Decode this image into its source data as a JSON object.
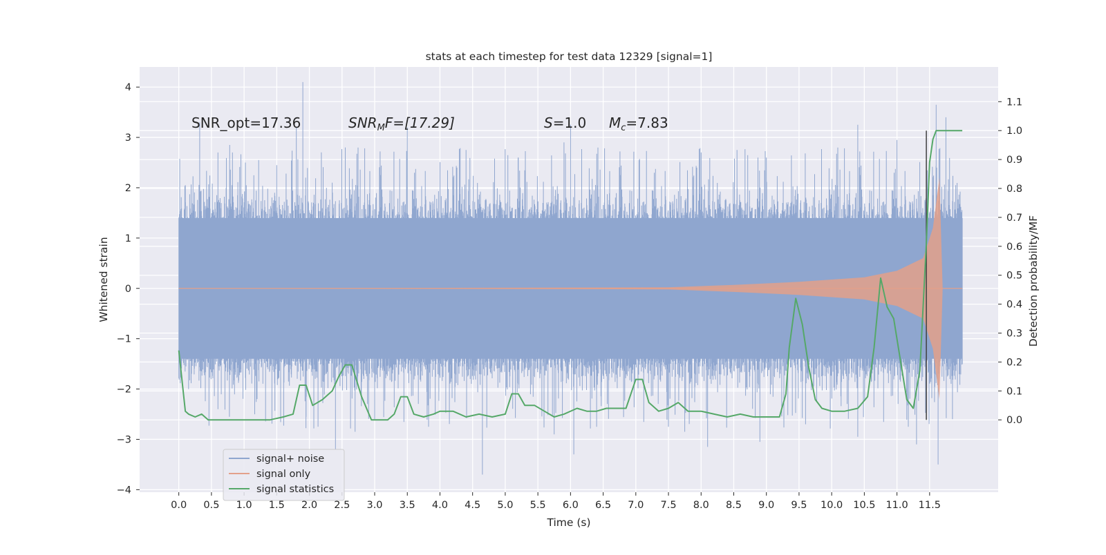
{
  "chart_data": {
    "type": "line",
    "title": "stats at each timestep for test data 12329 [signal=1]",
    "xlabel": "Time (s)",
    "ylabel": "Whitened strain",
    "y2label": "Detection probability/MF",
    "xlim": [
      -0.6,
      12.55
    ],
    "ylim": [
      -4.05,
      4.4
    ],
    "y2lim": [
      -0.25,
      1.22
    ],
    "x_ticks": [
      0.0,
      0.5,
      1.0,
      1.5,
      2.0,
      2.5,
      3.0,
      3.5,
      4.0,
      4.5,
      5.0,
      5.5,
      6.0,
      6.5,
      7.0,
      7.5,
      8.0,
      8.5,
      9.0,
      9.5,
      10.0,
      10.5,
      11.0,
      11.5
    ],
    "x_tick_labels": [
      "0.0",
      "0.5",
      "1.0",
      "1.5",
      "2.0",
      "2.5",
      "3.0",
      "3.5",
      "4.0",
      "4.5",
      "5.0",
      "5.5",
      "6.0",
      "6.5",
      "7.0",
      "7.5",
      "8.0",
      "8.5",
      "9.0",
      "9.5",
      "10.0",
      "10.5",
      "11.0",
      "11.5"
    ],
    "y_ticks": [
      4,
      3,
      2,
      1,
      0,
      -1,
      -2,
      -3,
      -4
    ],
    "y_tick_labels": [
      "4",
      "3",
      "2",
      "1",
      "0",
      "−1",
      "−2",
      "−3",
      "−4"
    ],
    "y2_ticks": [
      1.1,
      1.0,
      0.9,
      0.8,
      0.7,
      0.6,
      0.5,
      0.4,
      0.3,
      0.2,
      0.1,
      0.0
    ],
    "y2_tick_labels": [
      "1.1",
      "1.0",
      "0.9",
      "0.8",
      "0.7",
      "0.6",
      "0.5",
      "0.4",
      "0.3",
      "0.2",
      "0.1",
      "0.0"
    ],
    "grid": true,
    "legend_position": "lower-left",
    "annotations": {
      "snr_opt": "SNR_opt=17.36",
      "snr_mf_sym": "SNR",
      "snr_mf_sub": "M",
      "snr_mf_rest": "F=[17.29]",
      "s_sym": "S",
      "s_rest": "=1.0",
      "mc_sym": "M",
      "mc_sub": "c",
      "mc_rest": "=7.83"
    },
    "vertical_marker_x": 11.45,
    "series": [
      {
        "name": "signal+ noise",
        "color": "#8fa6cf",
        "axis": "left",
        "t_end": 12.0,
        "typical_envelope": [
          -1.4,
          1.4
        ],
        "peaks": [
          [
            0.0,
            1.1
          ],
          [
            0.1,
            2.05
          ],
          [
            0.2,
            1.5
          ],
          [
            0.32,
            3.3
          ],
          [
            0.6,
            2.7
          ],
          [
            0.78,
            2.85
          ],
          [
            1.02,
            2.5
          ],
          [
            1.5,
            2.45
          ],
          [
            1.9,
            4.1
          ],
          [
            1.8,
            3.2
          ],
          [
            2.55,
            2.8
          ],
          [
            3.5,
            3.2
          ],
          [
            4.4,
            2.75
          ],
          [
            5.2,
            2.6
          ],
          [
            5.9,
            2.9
          ],
          [
            6.0,
            3.25
          ],
          [
            7.05,
            2.55
          ],
          [
            8.0,
            2.7
          ],
          [
            8.55,
            2.75
          ],
          [
            9.0,
            2.6
          ],
          [
            10.4,
            3.25
          ],
          [
            11.0,
            2.95
          ],
          [
            11.6,
            3.65
          ],
          [
            11.75,
            3.4
          ],
          [
            11.9,
            2.05
          ]
        ],
        "troughs": [
          [
            0.15,
            -2.0
          ],
          [
            0.6,
            -2.4
          ],
          [
            1.2,
            -2.2
          ],
          [
            1.95,
            -2.55
          ],
          [
            2.4,
            -3.2
          ],
          [
            2.7,
            -2.85
          ],
          [
            3.0,
            -2.6
          ],
          [
            4.65,
            -3.7
          ],
          [
            5.75,
            -2.9
          ],
          [
            6.05,
            -3.3
          ],
          [
            6.4,
            -2.75
          ],
          [
            7.75,
            -2.85
          ],
          [
            8.1,
            -3.15
          ],
          [
            8.9,
            -3.05
          ],
          [
            9.6,
            -2.7
          ],
          [
            10.4,
            -2.95
          ],
          [
            11.3,
            -3.1
          ],
          [
            11.63,
            -3.5
          ],
          [
            11.85,
            -2.6
          ]
        ]
      },
      {
        "name": "signal only",
        "color": "#e3a08a",
        "axis": "left",
        "chirp": {
          "x": [
            0.0,
            7.5,
            8.5,
            9.5,
            10.5,
            11.0,
            11.4,
            11.55,
            11.65,
            11.7,
            12.0
          ],
          "amplitude": [
            0.0,
            0.02,
            0.07,
            0.13,
            0.22,
            0.35,
            0.6,
            1.2,
            2.2,
            0.0,
            0.0
          ]
        }
      },
      {
        "name": "signal statistics",
        "color": "#55a868",
        "axis": "right",
        "x": [
          0.0,
          0.1,
          0.15,
          0.25,
          0.35,
          0.45,
          0.6,
          0.8,
          1.0,
          1.2,
          1.4,
          1.6,
          1.75,
          1.85,
          1.95,
          2.05,
          2.2,
          2.35,
          2.45,
          2.55,
          2.65,
          2.8,
          2.95,
          3.1,
          3.2,
          3.3,
          3.4,
          3.5,
          3.6,
          3.75,
          3.9,
          4.0,
          4.2,
          4.4,
          4.6,
          4.8,
          5.0,
          5.1,
          5.2,
          5.3,
          5.45,
          5.6,
          5.75,
          5.9,
          6.1,
          6.25,
          6.4,
          6.55,
          6.7,
          6.85,
          7.0,
          7.1,
          7.2,
          7.35,
          7.5,
          7.65,
          7.8,
          8.0,
          8.2,
          8.4,
          8.6,
          8.8,
          9.0,
          9.2,
          9.3,
          9.35,
          9.45,
          9.55,
          9.65,
          9.75,
          9.85,
          10.0,
          10.2,
          10.4,
          10.55,
          10.65,
          10.75,
          10.85,
          10.95,
          11.05,
          11.15,
          11.25,
          11.35,
          11.45,
          11.5,
          11.55,
          11.6,
          11.7,
          11.8,
          11.9,
          12.0
        ],
        "y": [
          0.24,
          0.03,
          0.02,
          0.01,
          0.02,
          0.0,
          0.0,
          0.0,
          0.0,
          0.0,
          0.0,
          0.01,
          0.02,
          0.12,
          0.12,
          0.05,
          0.07,
          0.1,
          0.15,
          0.19,
          0.19,
          0.08,
          0.0,
          0.0,
          0.0,
          0.02,
          0.08,
          0.08,
          0.02,
          0.01,
          0.02,
          0.03,
          0.03,
          0.01,
          0.02,
          0.01,
          0.02,
          0.09,
          0.09,
          0.05,
          0.05,
          0.03,
          0.01,
          0.02,
          0.04,
          0.03,
          0.03,
          0.04,
          0.04,
          0.04,
          0.14,
          0.14,
          0.06,
          0.03,
          0.04,
          0.06,
          0.03,
          0.03,
          0.02,
          0.01,
          0.02,
          0.01,
          0.01,
          0.01,
          0.09,
          0.25,
          0.42,
          0.33,
          0.18,
          0.07,
          0.04,
          0.03,
          0.03,
          0.04,
          0.08,
          0.25,
          0.49,
          0.39,
          0.35,
          0.21,
          0.07,
          0.04,
          0.17,
          0.61,
          0.89,
          0.97,
          1.0,
          1.0,
          1.0,
          1.0,
          1.0
        ]
      }
    ]
  }
}
